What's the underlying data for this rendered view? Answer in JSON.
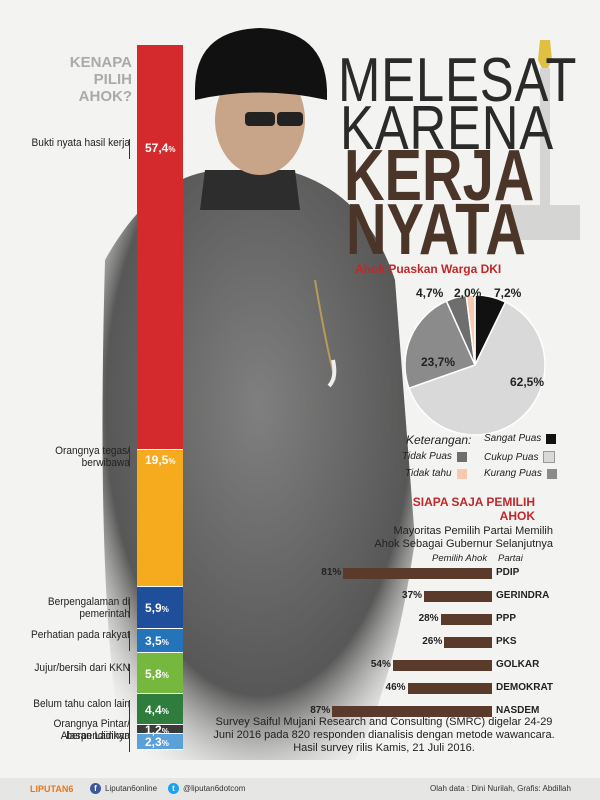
{
  "headline": {
    "line1": "MELESAT",
    "line2": "KARENA",
    "line3": "KERJA",
    "line4": "NYATA"
  },
  "question": "KENAPA PILIH AHOK?",
  "colors": {
    "accent_red": "#c0282a",
    "headline_brown": "#4a3528",
    "party_bar": "#5a3a2a"
  },
  "chart_data": [
    {
      "type": "bar",
      "title": "KENAPA PILIH AHOK?",
      "stacked": true,
      "orientation": "vertical",
      "categories": [
        "Bukti nyata hasil kerja",
        "Orangnya tegas/ berwibawa",
        "Berpengalaman di pemerintah",
        "Perhatian pada rakyat",
        "Jujur/bersih dari KKN",
        "Belum tahu calon lain",
        "Orangnya Pintar/ berpendidikan",
        "Alasan Lainnya"
      ],
      "values": [
        57.4,
        19.5,
        5.9,
        3.5,
        5.8,
        4.4,
        1.2,
        2.3
      ],
      "value_labels": [
        "57,4%",
        "19,5%",
        "5,9%",
        "3,5%",
        "5,8%",
        "4,4%",
        "1,2%",
        "2,3%"
      ],
      "colors": [
        "#d42a2e",
        "#f6ab1f",
        "#1f4e9a",
        "#2374b9",
        "#76b83e",
        "#2e7d3c",
        "#3a3a3a",
        "#5aa0d9"
      ],
      "unit": "%"
    },
    {
      "type": "pie",
      "title": "Ahok Puaskan Warga DKI",
      "categories": [
        "Sangat Puas",
        "Cukup Puas",
        "Kurang Puas",
        "Tidak Puas",
        "Tidak tahu"
      ],
      "values": [
        7.2,
        62.5,
        23.7,
        4.7,
        2.0
      ],
      "value_labels": [
        "7,2%",
        "62,5%",
        "23,7%",
        "4,7%",
        "2,0%"
      ],
      "colors": [
        "#111111",
        "#d9d9d9",
        "#8b8b8b",
        "#6e6e6e",
        "#f7c9b0"
      ],
      "legend_title": "Keterangan:",
      "legend_position": "bottom"
    },
    {
      "type": "bar",
      "orientation": "horizontal",
      "title": "SIAPA SAJA PEMILIH AHOK",
      "subtitle": "Mayoritas Pemilih Partai Memilih Ahok Sebagai Gubernur Selanjutnya",
      "xlabel": "Pemilih Ahok",
      "ylabel": "Partai",
      "categories": [
        "PDIP",
        "GERINDRA",
        "PPP",
        "PKS",
        "GOLKAR",
        "DEMOKRAT",
        "NASDEM"
      ],
      "values": [
        81,
        37,
        28,
        26,
        54,
        46,
        87
      ],
      "value_labels": [
        "81%",
        "37%",
        "28%",
        "26%",
        "54%",
        "46%",
        "87%"
      ],
      "xlim": [
        0,
        100
      ],
      "unit": "%"
    }
  ],
  "note": "Survey Saiful Mujani Research and Consulting (SMRC) digelar 24-29 Juni 2016 pada 820 responden dianalisis dengan metode wawancara. Hasil survey rilis Kamis, 21 Juli 2016.",
  "footer": {
    "brand": "LIPUTAN6",
    "facebook": "Liputan6online",
    "twitter": "@liputan6dotcom",
    "credit": "Olah data : Dini Nurilah, Grafis: Abdillah"
  }
}
